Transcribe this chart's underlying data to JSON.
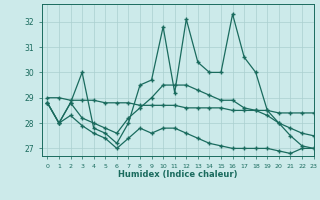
{
  "xlabel": "Humidex (Indice chaleur)",
  "background_color": "#cceaea",
  "grid_color": "#aacfcf",
  "line_color": "#1a6b5e",
  "xlim": [
    -0.5,
    23
  ],
  "ylim": [
    26.7,
    32.7
  ],
  "yticks": [
    27,
    28,
    29,
    30,
    31,
    32
  ],
  "xticks": [
    0,
    1,
    2,
    3,
    4,
    5,
    6,
    7,
    8,
    9,
    10,
    11,
    12,
    13,
    14,
    15,
    16,
    17,
    18,
    19,
    20,
    21,
    22,
    23
  ],
  "series1_x": [
    0,
    1,
    2,
    3,
    4,
    5,
    6,
    7,
    8,
    9,
    10,
    11,
    12,
    13,
    14,
    15,
    16,
    17,
    18,
    19,
    20,
    21,
    22,
    23
  ],
  "series1_y": [
    28.8,
    28.0,
    28.8,
    30.0,
    27.8,
    27.6,
    27.2,
    28.0,
    29.5,
    29.7,
    31.8,
    29.2,
    32.1,
    30.4,
    30.0,
    30.0,
    32.3,
    30.6,
    30.0,
    28.5,
    28.0,
    27.5,
    27.1,
    27.0
  ],
  "series2_x": [
    0,
    1,
    2,
    3,
    4,
    5,
    6,
    7,
    8,
    9,
    10,
    11,
    12,
    13,
    14,
    15,
    16,
    17,
    18,
    19,
    20,
    21,
    22,
    23
  ],
  "series2_y": [
    29.0,
    29.0,
    28.9,
    28.9,
    28.9,
    28.8,
    28.8,
    28.8,
    28.7,
    28.7,
    28.7,
    28.7,
    28.6,
    28.6,
    28.6,
    28.6,
    28.5,
    28.5,
    28.5,
    28.5,
    28.4,
    28.4,
    28.4,
    28.4
  ],
  "series3_x": [
    0,
    1,
    2,
    3,
    4,
    5,
    6,
    7,
    8,
    9,
    10,
    11,
    12,
    13,
    14,
    15,
    16,
    17,
    18,
    19,
    20,
    21,
    22,
    23
  ],
  "series3_y": [
    28.8,
    28.0,
    28.8,
    28.2,
    28.0,
    27.8,
    27.6,
    28.2,
    28.6,
    29.0,
    29.5,
    29.5,
    29.5,
    29.3,
    29.1,
    28.9,
    28.9,
    28.6,
    28.5,
    28.3,
    28.0,
    27.8,
    27.6,
    27.5
  ],
  "series4_x": [
    0,
    1,
    2,
    3,
    4,
    5,
    6,
    7,
    8,
    9,
    10,
    11,
    12,
    13,
    14,
    15,
    16,
    17,
    18,
    19,
    20,
    21,
    22,
    23
  ],
  "series4_y": [
    28.8,
    28.0,
    28.3,
    27.9,
    27.6,
    27.4,
    27.0,
    27.4,
    27.8,
    27.6,
    27.8,
    27.8,
    27.6,
    27.4,
    27.2,
    27.1,
    27.0,
    27.0,
    27.0,
    27.0,
    26.9,
    26.8,
    27.0,
    27.0
  ]
}
